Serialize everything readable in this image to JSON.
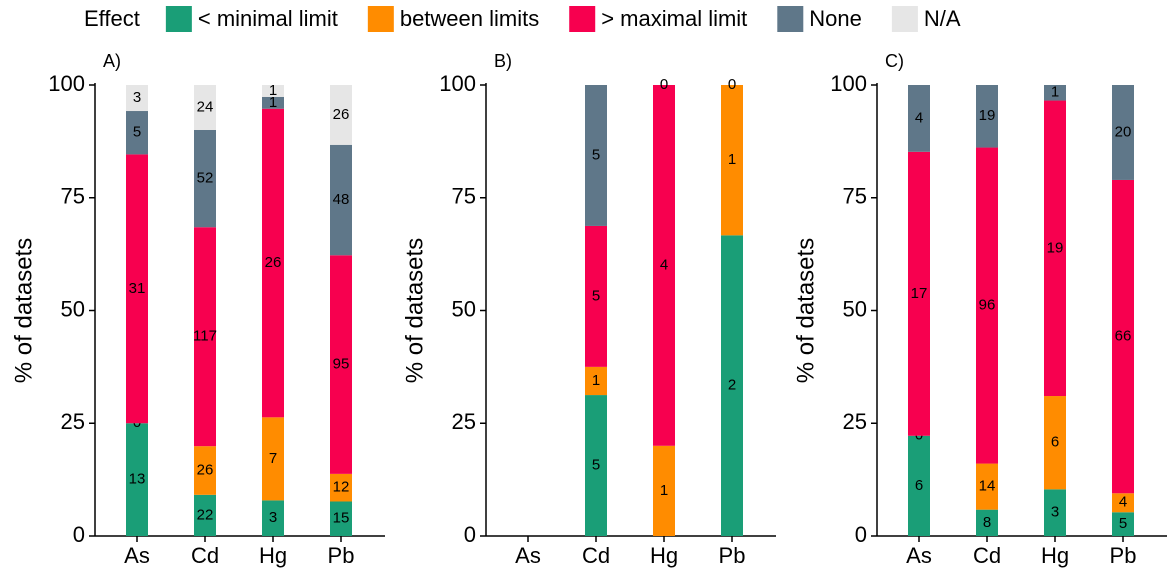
{
  "legend": {
    "title": "Effect",
    "items": [
      {
        "name": "< minimal limit",
        "color": "#1a9e77"
      },
      {
        "name": "between limits",
        "color": "#ff8c00"
      },
      {
        "name": "> maximal limit",
        "color": "#f7004f"
      },
      {
        "name": "None",
        "color": "#5f7789"
      },
      {
        "name": "N/A",
        "color": "#e6e6e6"
      }
    ]
  },
  "chart_data": [
    {
      "type": "bar",
      "stacked": "percent",
      "title": "A)",
      "y_label": "% of datasets",
      "categories": [
        "As",
        "Cd",
        "Hg",
        "Pb"
      ],
      "ylim": [
        0,
        100
      ],
      "yticks": [
        0,
        25,
        50,
        75,
        100
      ],
      "series": [
        {
          "values": [
            13,
            22,
            3,
            15
          ]
        },
        {
          "values": [
            0,
            26,
            7,
            12
          ]
        },
        {
          "values": [
            31,
            117,
            26,
            95
          ]
        },
        {
          "values": [
            5,
            52,
            1,
            48
          ]
        },
        {
          "values": [
            3,
            24,
            1,
            26
          ]
        }
      ]
    },
    {
      "type": "bar",
      "stacked": "percent",
      "title": "B)",
      "y_label": "% of datasets",
      "categories": [
        "As",
        "Cd",
        "Hg",
        "Pb"
      ],
      "ylim": [
        0,
        100
      ],
      "yticks": [
        0,
        25,
        50,
        75,
        100
      ],
      "series": [
        {
          "values": [
            null,
            5,
            null,
            2
          ]
        },
        {
          "values": [
            null,
            1,
            1,
            1
          ]
        },
        {
          "values": [
            null,
            5,
            4,
            0
          ]
        },
        {
          "values": [
            null,
            5,
            0,
            null
          ]
        },
        {
          "values": [
            null,
            null,
            null,
            null
          ]
        }
      ]
    },
    {
      "type": "bar",
      "stacked": "percent",
      "title": "C)",
      "y_label": "% of datasets",
      "categories": [
        "As",
        "Cd",
        "Hg",
        "Pb"
      ],
      "ylim": [
        0,
        100
      ],
      "yticks": [
        0,
        25,
        50,
        75,
        100
      ],
      "series": [
        {
          "values": [
            6,
            8,
            3,
            5
          ]
        },
        {
          "values": [
            0,
            14,
            6,
            4
          ]
        },
        {
          "values": [
            17,
            96,
            19,
            66
          ]
        },
        {
          "values": [
            4,
            19,
            1,
            20
          ]
        },
        {
          "values": [
            null,
            null,
            null,
            null
          ]
        }
      ]
    }
  ]
}
